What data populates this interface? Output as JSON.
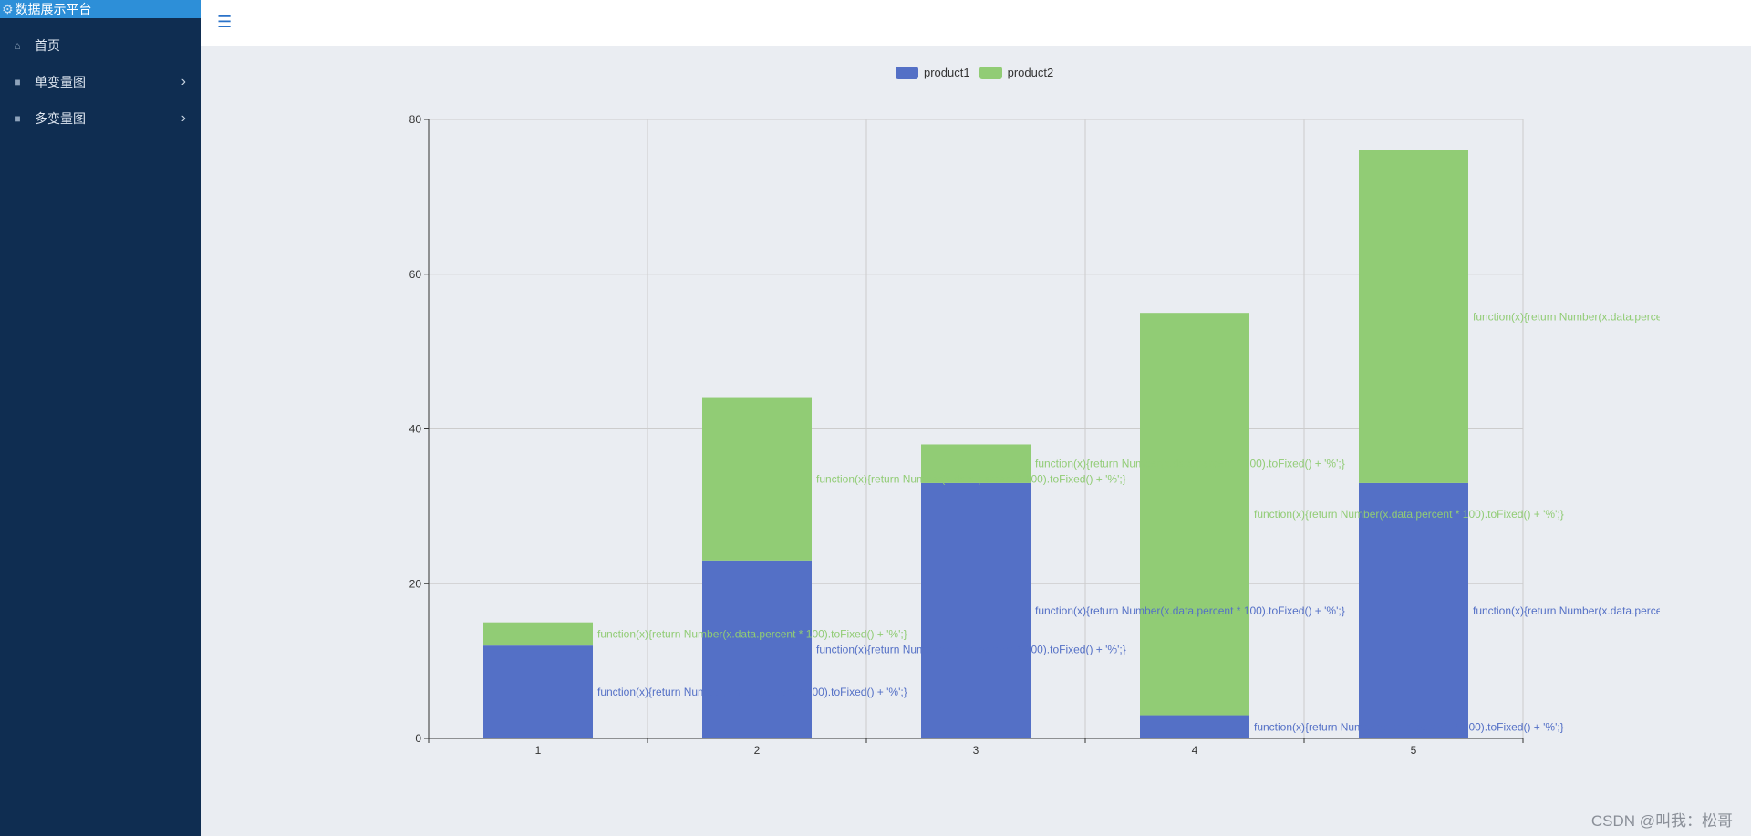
{
  "sidebar": {
    "brand": "数据展示平台",
    "items": [
      {
        "label": "首页",
        "icon": "home-icon",
        "has_submenu": false
      },
      {
        "label": "单变量图",
        "icon": "gift-icon",
        "has_submenu": true
      },
      {
        "label": "多变量图",
        "icon": "gift-icon",
        "has_submenu": true
      }
    ]
  },
  "topbar": {
    "menu_icon": "hamburger-icon"
  },
  "colors": {
    "product1": "#5470c6",
    "product2": "#91cc75",
    "sidebar_bg": "#0f2d51",
    "brand_bg": "#2d8fd8"
  },
  "chart_data": {
    "type": "bar",
    "stacked": true,
    "categories": [
      "1",
      "2",
      "3",
      "4",
      "5"
    ],
    "series": [
      {
        "name": "product1",
        "values": [
          12,
          23,
          33,
          3,
          33
        ]
      },
      {
        "name": "product2",
        "values": [
          3,
          21,
          5,
          52,
          43
        ]
      }
    ],
    "label_text": "function(x){return Number(x.data.percent * 100).toFixed() + '%';}",
    "ylim": [
      0,
      80
    ],
    "yticks": [
      0,
      20,
      40,
      60,
      80
    ],
    "grid": true,
    "legend": "top-center",
    "title": "",
    "xlabel": "",
    "ylabel": ""
  },
  "watermark": "CSDN @叫我：松哥"
}
